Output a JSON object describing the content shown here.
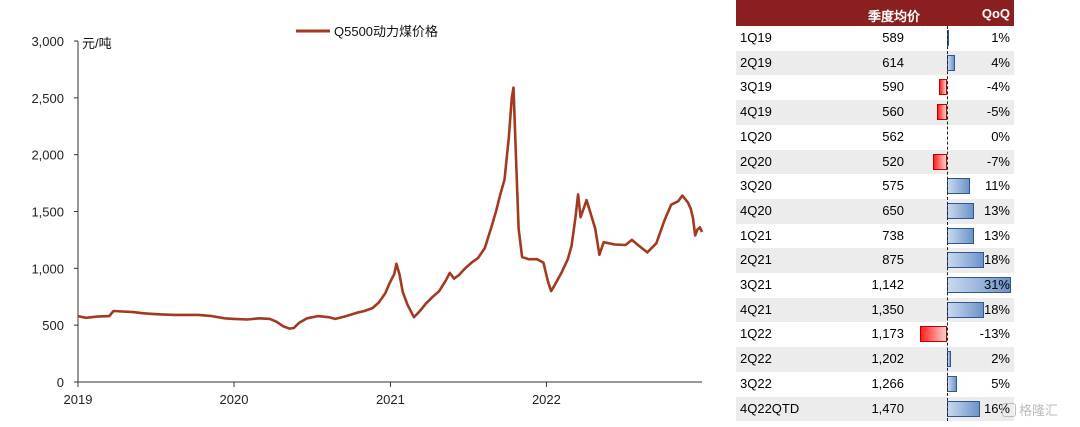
{
  "chart_data": {
    "type": "line",
    "unit_label": "元/吨",
    "legend": "Q5500动力煤价格",
    "series_color": "#a33a1f",
    "y_ticks": [
      "0",
      "500",
      "1,000",
      "1,500",
      "2,000",
      "2,500",
      "3,000"
    ],
    "ylim": [
      0,
      3000
    ],
    "x_ticks": [
      "2019",
      "2020",
      "2021",
      "2022"
    ],
    "xlim": [
      "2019-01-01",
      "2022-12-31"
    ],
    "points": [
      [
        "2019-01-01",
        580
      ],
      [
        "2019-01-20",
        565
      ],
      [
        "2019-02-15",
        575
      ],
      [
        "2019-03-15",
        580
      ],
      [
        "2019-03-25",
        625
      ],
      [
        "2019-04-15",
        620
      ],
      [
        "2019-05-10",
        615
      ],
      [
        "2019-06-01",
        605
      ],
      [
        "2019-06-20",
        600
      ],
      [
        "2019-07-15",
        595
      ],
      [
        "2019-08-15",
        590
      ],
      [
        "2019-09-15",
        590
      ],
      [
        "2019-10-10",
        590
      ],
      [
        "2019-11-10",
        580
      ],
      [
        "2019-12-10",
        560
      ],
      [
        "2020-01-01",
        555
      ],
      [
        "2020-02-01",
        550
      ],
      [
        "2020-03-01",
        560
      ],
      [
        "2020-03-25",
        555
      ],
      [
        "2020-04-10",
        530
      ],
      [
        "2020-04-25",
        490
      ],
      [
        "2020-05-10",
        470
      ],
      [
        "2020-05-20",
        475
      ],
      [
        "2020-06-01",
        520
      ],
      [
        "2020-06-20",
        560
      ],
      [
        "2020-07-15",
        580
      ],
      [
        "2020-08-10",
        570
      ],
      [
        "2020-08-25",
        555
      ],
      [
        "2020-09-15",
        575
      ],
      [
        "2020-10-15",
        610
      ],
      [
        "2020-11-01",
        625
      ],
      [
        "2020-11-20",
        650
      ],
      [
        "2020-12-05",
        700
      ],
      [
        "2020-12-20",
        780
      ],
      [
        "2020-12-30",
        870
      ],
      [
        "2021-01-10",
        950
      ],
      [
        "2021-01-15",
        1040
      ],
      [
        "2021-01-22",
        950
      ],
      [
        "2021-01-30",
        790
      ],
      [
        "2021-02-10",
        680
      ],
      [
        "2021-02-25",
        570
      ],
      [
        "2021-03-10",
        620
      ],
      [
        "2021-03-25",
        690
      ],
      [
        "2021-04-10",
        750
      ],
      [
        "2021-04-25",
        800
      ],
      [
        "2021-05-10",
        890
      ],
      [
        "2021-05-20",
        960
      ],
      [
        "2021-05-30",
        910
      ],
      [
        "2021-06-10",
        940
      ],
      [
        "2021-06-25",
        1000
      ],
      [
        "2021-07-10",
        1050
      ],
      [
        "2021-07-25",
        1090
      ],
      [
        "2021-08-10",
        1180
      ],
      [
        "2021-08-25",
        1360
      ],
      [
        "2021-09-05",
        1500
      ],
      [
        "2021-09-15",
        1650
      ],
      [
        "2021-09-25",
        1780
      ],
      [
        "2021-10-05",
        2150
      ],
      [
        "2021-10-12",
        2500
      ],
      [
        "2021-10-16",
        2590
      ],
      [
        "2021-10-22",
        1950
      ],
      [
        "2021-10-28",
        1350
      ],
      [
        "2021-11-05",
        1100
      ],
      [
        "2021-11-20",
        1080
      ],
      [
        "2021-12-10",
        1080
      ],
      [
        "2021-12-25",
        1050
      ],
      [
        "2022-01-05",
        880
      ],
      [
        "2022-01-12",
        800
      ],
      [
        "2022-01-20",
        850
      ],
      [
        "2022-02-05",
        960
      ],
      [
        "2022-02-20",
        1080
      ],
      [
        "2022-03-01",
        1200
      ],
      [
        "2022-03-10",
        1450
      ],
      [
        "2022-03-16",
        1650
      ],
      [
        "2022-03-22",
        1450
      ],
      [
        "2022-04-05",
        1600
      ],
      [
        "2022-04-25",
        1350
      ],
      [
        "2022-05-05",
        1120
      ],
      [
        "2022-05-15",
        1230
      ],
      [
        "2022-06-10",
        1210
      ],
      [
        "2022-07-05",
        1205
      ],
      [
        "2022-07-20",
        1250
      ],
      [
        "2022-08-05",
        1200
      ],
      [
        "2022-08-25",
        1140
      ],
      [
        "2022-09-15",
        1220
      ],
      [
        "2022-10-05",
        1430
      ],
      [
        "2022-10-20",
        1560
      ],
      [
        "2022-11-05",
        1590
      ],
      [
        "2022-11-15",
        1640
      ],
      [
        "2022-11-28",
        1580
      ],
      [
        "2022-12-05",
        1520
      ],
      [
        "2022-12-10",
        1440
      ],
      [
        "2022-12-15",
        1290
      ],
      [
        "2022-12-20",
        1340
      ],
      [
        "2022-12-26",
        1360
      ],
      [
        "2022-12-31",
        1320
      ]
    ]
  },
  "table": {
    "header_quarter": "",
    "header_avg": "季度均价",
    "header_qoq": "QoQ",
    "header_bg": "#8b1e1e",
    "positive_color": "#2f5597",
    "negative_color": "#c00000",
    "rows": [
      {
        "quarter": "1Q19",
        "avg": "589",
        "qoq": "1%",
        "qoq_value": 1
      },
      {
        "quarter": "2Q19",
        "avg": "614",
        "qoq": "4%",
        "qoq_value": 4
      },
      {
        "quarter": "3Q19",
        "avg": "590",
        "qoq": "-4%",
        "qoq_value": -4
      },
      {
        "quarter": "4Q19",
        "avg": "560",
        "qoq": "-5%",
        "qoq_value": -5
      },
      {
        "quarter": "1Q20",
        "avg": "562",
        "qoq": "0%",
        "qoq_value": 0
      },
      {
        "quarter": "2Q20",
        "avg": "520",
        "qoq": "-7%",
        "qoq_value": -7
      },
      {
        "quarter": "3Q20",
        "avg": "575",
        "qoq": "11%",
        "qoq_value": 11
      },
      {
        "quarter": "4Q20",
        "avg": "650",
        "qoq": "13%",
        "qoq_value": 13
      },
      {
        "quarter": "1Q21",
        "avg": "738",
        "qoq": "13%",
        "qoq_value": 13
      },
      {
        "quarter": "2Q21",
        "avg": "875",
        "qoq": "18%",
        "qoq_value": 18
      },
      {
        "quarter": "3Q21",
        "avg": "1,142",
        "qoq": "31%",
        "qoq_value": 31
      },
      {
        "quarter": "4Q21",
        "avg": "1,350",
        "qoq": "18%",
        "qoq_value": 18
      },
      {
        "quarter": "1Q22",
        "avg": "1,173",
        "qoq": "-13%",
        "qoq_value": -13
      },
      {
        "quarter": "2Q22",
        "avg": "1,202",
        "qoq": "2%",
        "qoq_value": 2
      },
      {
        "quarter": "3Q22",
        "avg": "1,266",
        "qoq": "5%",
        "qoq_value": 5
      },
      {
        "quarter": "4Q22QTD",
        "avg": "1,470",
        "qoq": "16%",
        "qoq_value": 16
      }
    ]
  },
  "watermark": "格隆汇"
}
